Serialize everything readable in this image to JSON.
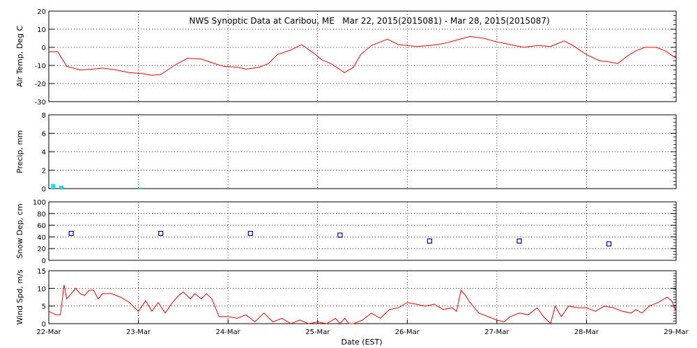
{
  "chart_data": {
    "title": "NWS Synoptic Data at Caribou, ME   Mar 22, 2015(2015081) - Mar 28, 2015(2015087)",
    "xlabel": "Date (EST)",
    "x_range_days": [
      0,
      7
    ],
    "x_ticks": [
      {
        "day": 0,
        "label": "22-Mar"
      },
      {
        "day": 1,
        "label": "23-Mar"
      },
      {
        "day": 2,
        "label": "24-Mar"
      },
      {
        "day": 3,
        "label": "25-Mar"
      },
      {
        "day": 4,
        "label": "26-Mar"
      },
      {
        "day": 5,
        "label": "27-Mar"
      },
      {
        "day": 6,
        "label": "28-Mar"
      },
      {
        "day": 7,
        "label": "29-Mar"
      }
    ],
    "panels": [
      {
        "id": "air-temp",
        "type": "line",
        "ylabel": "Air Temp, Deg C",
        "ylim": [
          -30,
          20
        ],
        "yticks": [
          20,
          10,
          0,
          -10,
          -20,
          -30
        ],
        "series_color": "#ff0000",
        "points": [
          [
            0.0,
            -2.5
          ],
          [
            0.1,
            -2.5
          ],
          [
            0.2,
            -10.5
          ],
          [
            0.35,
            -12.5
          ],
          [
            0.5,
            -12
          ],
          [
            0.6,
            -11.5
          ],
          [
            0.75,
            -12.5
          ],
          [
            0.9,
            -14
          ],
          [
            1.05,
            -14.5
          ],
          [
            1.15,
            -15.5
          ],
          [
            1.25,
            -15
          ],
          [
            1.4,
            -10
          ],
          [
            1.55,
            -6
          ],
          [
            1.7,
            -6.5
          ],
          [
            1.85,
            -9
          ],
          [
            1.95,
            -10.5
          ],
          [
            2.1,
            -11
          ],
          [
            2.2,
            -12
          ],
          [
            2.35,
            -11
          ],
          [
            2.45,
            -9
          ],
          [
            2.55,
            -4
          ],
          [
            2.7,
            -1.5
          ],
          [
            2.82,
            1.5
          ],
          [
            2.95,
            -3
          ],
          [
            3.05,
            -7
          ],
          [
            3.15,
            -9
          ],
          [
            3.3,
            -14
          ],
          [
            3.4,
            -11
          ],
          [
            3.48,
            -4
          ],
          [
            3.6,
            1
          ],
          [
            3.7,
            3
          ],
          [
            3.78,
            4.5
          ],
          [
            3.9,
            1.5
          ],
          [
            4.0,
            1
          ],
          [
            4.1,
            0.5
          ],
          [
            4.25,
            1
          ],
          [
            4.4,
            2
          ],
          [
            4.55,
            4
          ],
          [
            4.7,
            6
          ],
          [
            4.85,
            5
          ],
          [
            5.0,
            3
          ],
          [
            5.1,
            2
          ],
          [
            5.2,
            1
          ],
          [
            5.3,
            0
          ],
          [
            5.45,
            1
          ],
          [
            5.6,
            0.5
          ],
          [
            5.75,
            3.5
          ],
          [
            5.85,
            1
          ],
          [
            6.0,
            -4
          ],
          [
            6.15,
            -7.5
          ],
          [
            6.25,
            -8
          ],
          [
            6.35,
            -9
          ],
          [
            6.45,
            -5
          ],
          [
            6.55,
            -2
          ],
          [
            6.65,
            0
          ],
          [
            6.78,
            0
          ],
          [
            6.88,
            -2
          ],
          [
            7.0,
            -6
          ]
        ]
      },
      {
        "id": "precip",
        "type": "bar",
        "ylabel": "Precip, mm",
        "ylim": [
          0,
          8
        ],
        "yticks": [
          8,
          6,
          4,
          2,
          0
        ],
        "series_color": "#00e5ee",
        "bars": [
          {
            "day": 0.05,
            "value": 0.5
          },
          {
            "day": 0.14,
            "value": 0.3
          },
          {
            "day": 1.02,
            "value": 0.1
          }
        ]
      },
      {
        "id": "snow-depth",
        "type": "scatter",
        "ylabel": "Snow Dep, cm",
        "ylim": [
          0,
          100
        ],
        "yticks": [
          100,
          80,
          60,
          40,
          20,
          0
        ],
        "series_color": "#0000aa",
        "points": [
          [
            0.25,
            46
          ],
          [
            1.25,
            46
          ],
          [
            2.25,
            46
          ],
          [
            3.25,
            43
          ],
          [
            4.25,
            33
          ],
          [
            5.25,
            33
          ],
          [
            6.25,
            28
          ]
        ]
      },
      {
        "id": "wind-speed",
        "type": "line",
        "ylabel": "Wind Spd, m/s",
        "ylim": [
          0,
          15
        ],
        "yticks": [
          15,
          10,
          5,
          0
        ],
        "series_color": "#ff0000",
        "points": [
          [
            0.0,
            3.5
          ],
          [
            0.08,
            2.5
          ],
          [
            0.13,
            2.5
          ],
          [
            0.17,
            11
          ],
          [
            0.2,
            7
          ],
          [
            0.25,
            8.5
          ],
          [
            0.3,
            10
          ],
          [
            0.35,
            8.5
          ],
          [
            0.4,
            8
          ],
          [
            0.45,
            9.5
          ],
          [
            0.5,
            9.5
          ],
          [
            0.55,
            7
          ],
          [
            0.6,
            8.5
          ],
          [
            0.7,
            8.5
          ],
          [
            0.8,
            7.5
          ],
          [
            0.9,
            6
          ],
          [
            1.0,
            3.5
          ],
          [
            1.08,
            6.5
          ],
          [
            1.15,
            3.5
          ],
          [
            1.22,
            6
          ],
          [
            1.3,
            3
          ],
          [
            1.38,
            6
          ],
          [
            1.45,
            8
          ],
          [
            1.5,
            9
          ],
          [
            1.58,
            7
          ],
          [
            1.63,
            8.5
          ],
          [
            1.7,
            7
          ],
          [
            1.76,
            8.5
          ],
          [
            1.82,
            7
          ],
          [
            1.9,
            2
          ],
          [
            2.0,
            2
          ],
          [
            2.1,
            1.5
          ],
          [
            2.2,
            2.5
          ],
          [
            2.3,
            0.5
          ],
          [
            2.4,
            3
          ],
          [
            2.5,
            0.5
          ],
          [
            2.6,
            1.5
          ],
          [
            2.7,
            0
          ],
          [
            2.8,
            1
          ],
          [
            2.9,
            0
          ],
          [
            3.0,
            0.5
          ],
          [
            3.1,
            0
          ],
          [
            3.2,
            1.5
          ],
          [
            3.25,
            0
          ],
          [
            3.3,
            1.5
          ],
          [
            3.35,
            0
          ],
          [
            3.4,
            0
          ],
          [
            3.5,
            1
          ],
          [
            3.6,
            3
          ],
          [
            3.7,
            1.5
          ],
          [
            3.8,
            4
          ],
          [
            3.9,
            4.5
          ],
          [
            4.0,
            6
          ],
          [
            4.1,
            5.5
          ],
          [
            4.2,
            5
          ],
          [
            4.3,
            5.5
          ],
          [
            4.4,
            4
          ],
          [
            4.5,
            4.5
          ],
          [
            4.55,
            3.5
          ],
          [
            4.6,
            9.5
          ],
          [
            4.65,
            8
          ],
          [
            4.7,
            6
          ],
          [
            4.8,
            3
          ],
          [
            4.9,
            2
          ],
          [
            5.0,
            1
          ],
          [
            5.08,
            0.5
          ],
          [
            5.15,
            2
          ],
          [
            5.25,
            3
          ],
          [
            5.35,
            2.5
          ],
          [
            5.45,
            4.5
          ],
          [
            5.52,
            2
          ],
          [
            5.6,
            0
          ],
          [
            5.65,
            5
          ],
          [
            5.72,
            2
          ],
          [
            5.8,
            5
          ],
          [
            5.9,
            4.5
          ],
          [
            6.0,
            4.5
          ],
          [
            6.1,
            3.5
          ],
          [
            6.2,
            5
          ],
          [
            6.3,
            4.5
          ],
          [
            6.4,
            3.5
          ],
          [
            6.5,
            3
          ],
          [
            6.55,
            4
          ],
          [
            6.62,
            3
          ],
          [
            6.7,
            5
          ],
          [
            6.8,
            6
          ],
          [
            6.9,
            7.5
          ],
          [
            6.95,
            6.5
          ],
          [
            7.0,
            3.5
          ]
        ]
      }
    ]
  }
}
